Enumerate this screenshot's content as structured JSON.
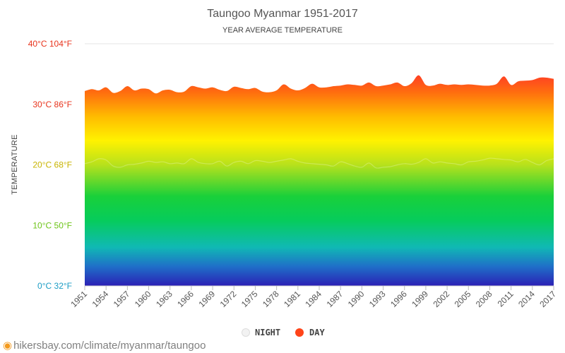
{
  "chart_data": {
    "type": "area",
    "title": "Taungoo Myanmar 1951-2017",
    "subtitle": "YEAR AVERAGE TEMPERATURE",
    "ylabel": "TEMPERATURE",
    "ylim": [
      0,
      40
    ],
    "y_ticks": [
      {
        "value": 0,
        "label": "0°C 32°F",
        "color": "#1a9cc4"
      },
      {
        "value": 10,
        "label": "10°C 50°F",
        "color": "#6cc417"
      },
      {
        "value": 20,
        "label": "20°C 68°F",
        "color": "#c8b400"
      },
      {
        "value": 30,
        "label": "30°C 86°F",
        "color": "#e8331c"
      },
      {
        "value": 40,
        "label": "40°C 104°F",
        "color": "#e8331c"
      }
    ],
    "x_ticks": [
      "1951",
      "1954",
      "1957",
      "1960",
      "1963",
      "1966",
      "1969",
      "1972",
      "1975",
      "1978",
      "1981",
      "1984",
      "1987",
      "1990",
      "1993",
      "1996",
      "1999",
      "2002",
      "2005",
      "2008",
      "2011",
      "2014",
      "2017"
    ],
    "x": [
      1951,
      1952,
      1953,
      1954,
      1955,
      1956,
      1957,
      1958,
      1959,
      1960,
      1961,
      1962,
      1963,
      1964,
      1965,
      1966,
      1967,
      1968,
      1969,
      1970,
      1971,
      1972,
      1973,
      1974,
      1975,
      1976,
      1977,
      1978,
      1979,
      1980,
      1981,
      1982,
      1983,
      1984,
      1985,
      1986,
      1987,
      1988,
      1989,
      1990,
      1991,
      1992,
      1993,
      1994,
      1995,
      1996,
      1997,
      1998,
      1999,
      2000,
      2001,
      2002,
      2003,
      2004,
      2005,
      2006,
      2007,
      2008,
      2009,
      2010,
      2011,
      2012,
      2013,
      2014,
      2015,
      2016,
      2017
    ],
    "series": [
      {
        "name": "NIGHT",
        "color": "#eeeeee",
        "values": [
          20.2,
          20.5,
          21.0,
          20.8,
          19.8,
          19.6,
          20.0,
          20.1,
          20.3,
          20.6,
          20.4,
          20.5,
          20.2,
          20.3,
          20.2,
          21.0,
          20.4,
          20.2,
          20.2,
          20.6,
          19.8,
          20.4,
          20.6,
          20.2,
          20.7,
          20.6,
          20.4,
          20.6,
          20.8,
          21.0,
          20.6,
          20.3,
          20.2,
          20.1,
          20.0,
          19.8,
          20.5,
          20.2,
          19.8,
          19.6,
          20.3,
          19.5,
          19.6,
          19.7,
          20.0,
          20.2,
          20.1,
          20.4,
          21.0,
          20.3,
          20.5,
          20.3,
          20.2,
          20.0,
          20.5,
          20.6,
          20.8,
          21.1,
          21.0,
          20.9,
          20.8,
          20.5,
          20.9,
          20.4,
          20.0,
          20.7,
          21.0
        ]
      },
      {
        "name": "DAY",
        "color": "#ff4419",
        "values": [
          32.2,
          32.5,
          32.3,
          32.8,
          31.9,
          32.2,
          33.0,
          32.3,
          32.6,
          32.5,
          31.8,
          32.3,
          32.4,
          32.0,
          32.1,
          33.0,
          32.8,
          32.6,
          32.8,
          32.4,
          32.2,
          32.9,
          32.7,
          32.5,
          32.7,
          32.1,
          32.0,
          32.3,
          33.3,
          32.6,
          32.3,
          32.7,
          33.4,
          32.8,
          32.8,
          33.0,
          33.1,
          33.3,
          33.2,
          33.1,
          33.6,
          33.0,
          33.1,
          33.3,
          33.6,
          33.0,
          33.5,
          34.8,
          33.2,
          33.1,
          33.4,
          33.2,
          33.3,
          33.2,
          33.3,
          33.2,
          33.1,
          33.1,
          33.4,
          34.6,
          33.2,
          33.8,
          33.9,
          34.0,
          34.4,
          34.4,
          34.2
        ]
      }
    ],
    "legend": "bottom-center",
    "grid": true
  },
  "footer": {
    "pin_icon": "map-pin-icon",
    "url": "hikersbay.com/climate/myanmar/taungoo"
  }
}
